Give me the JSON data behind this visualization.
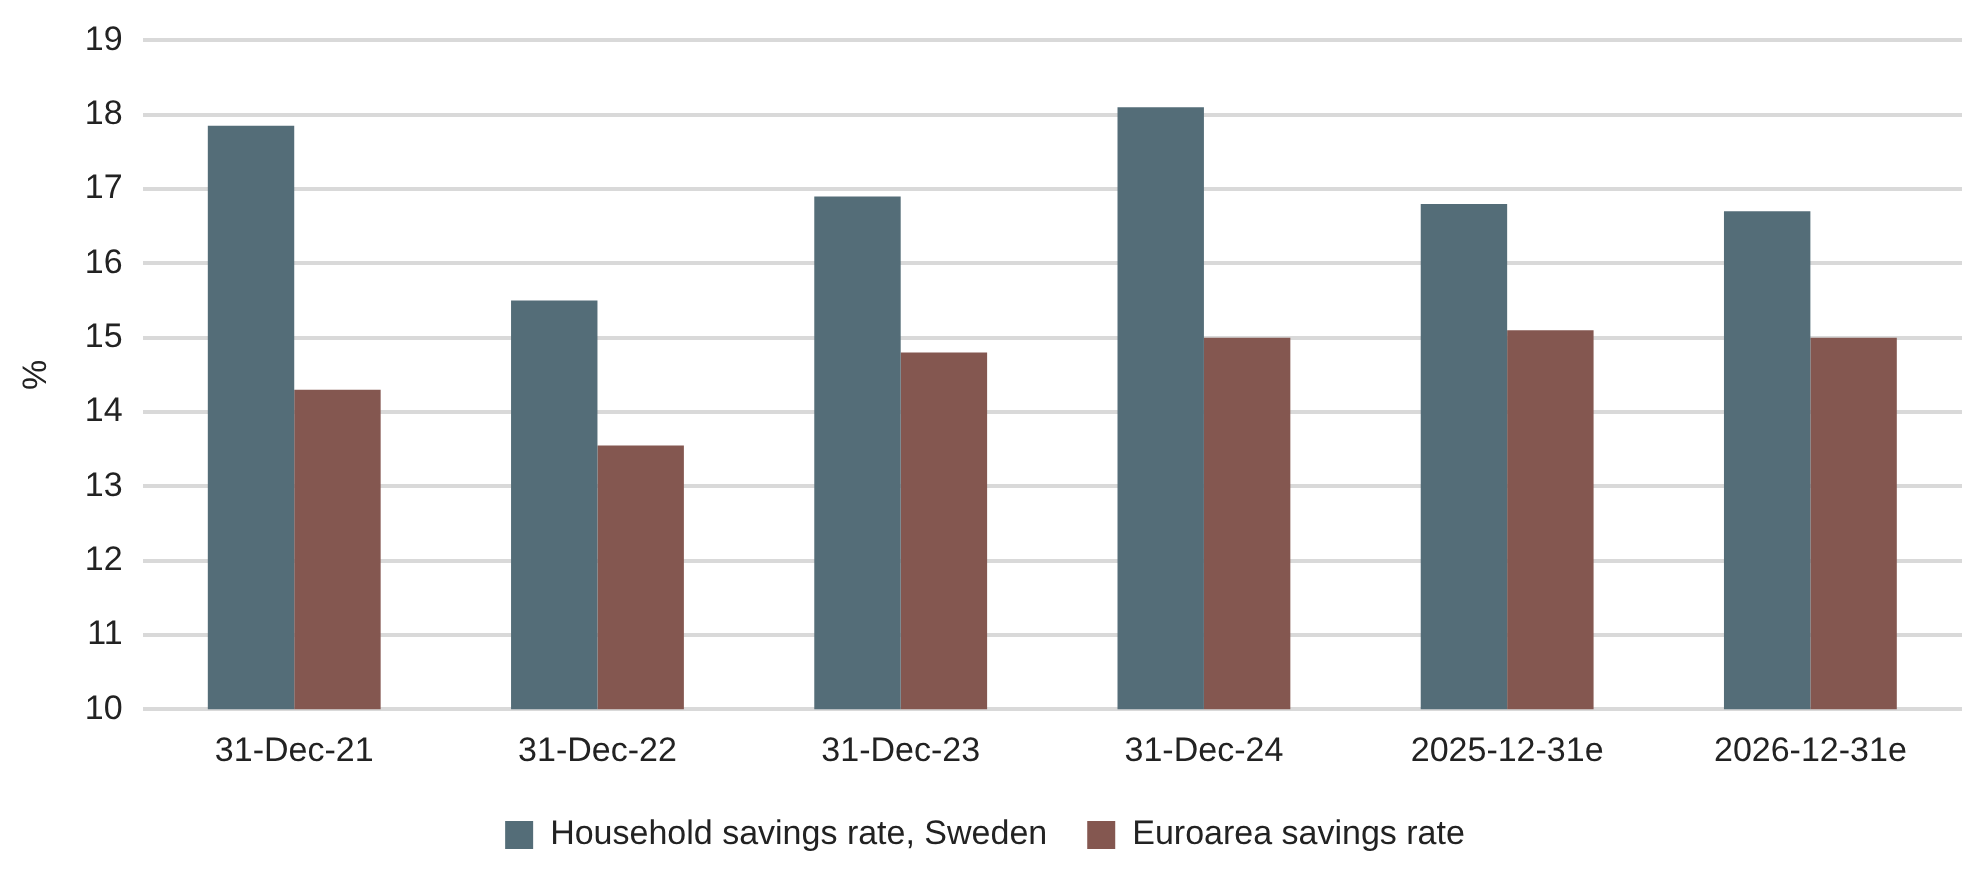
{
  "chart_data": {
    "type": "bar",
    "ylabel": "%",
    "categories": [
      "31-Dec-21",
      "31-Dec-22",
      "31-Dec-23",
      "31-Dec-24",
      "2025-12-31e",
      "2026-12-31e"
    ],
    "series": [
      {
        "name": "Household savings rate, Sweden",
        "color": "#546d78",
        "values": [
          17.85,
          15.5,
          16.9,
          18.1,
          16.8,
          16.7
        ]
      },
      {
        "name": "Euroarea savings rate",
        "color": "#845750",
        "values": [
          14.3,
          13.55,
          14.8,
          15.0,
          15.1,
          15.0
        ]
      }
    ],
    "ylim": [
      10,
      19
    ],
    "yticks": [
      10,
      11,
      12,
      13,
      14,
      15,
      16,
      17,
      18,
      19
    ],
    "grid": "y",
    "legend": "bottom"
  }
}
